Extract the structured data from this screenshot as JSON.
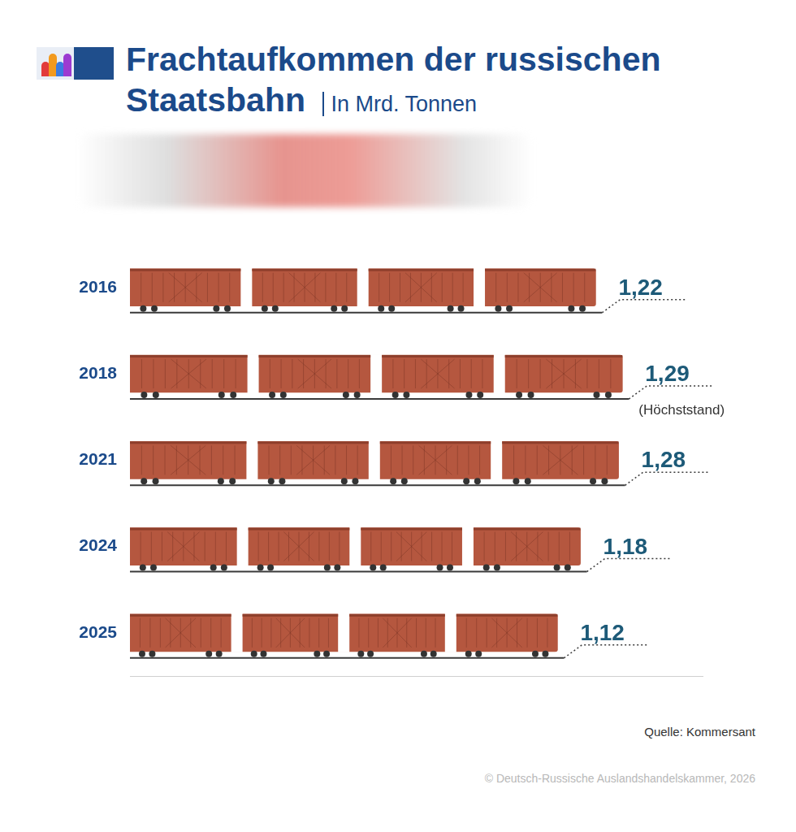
{
  "chart_data": {
    "type": "bar",
    "orientation": "horizontal",
    "title": "Frachtaufkommen der russischen Staatsbahn",
    "subtitle": "In Mrd. Tonnen",
    "categories": [
      "2016",
      "2018",
      "2021",
      "2024",
      "2025"
    ],
    "values": [
      1.22,
      1.29,
      1.28,
      1.18,
      1.12
    ],
    "value_labels": [
      "1,22",
      "1,29",
      "1,28",
      "1,18",
      "1,12"
    ],
    "color": "#b5573f",
    "xlim": [
      0,
      1.5
    ],
    "grid": false,
    "data_labels": true,
    "tick_labels": "y",
    "annotations": [
      {
        "category": "2018",
        "text": "(Höchststand)"
      }
    ],
    "source": "Quelle: Kommersant",
    "copyright": "© Deutsch-Russische Auslandshandelskammer, 2026"
  }
}
